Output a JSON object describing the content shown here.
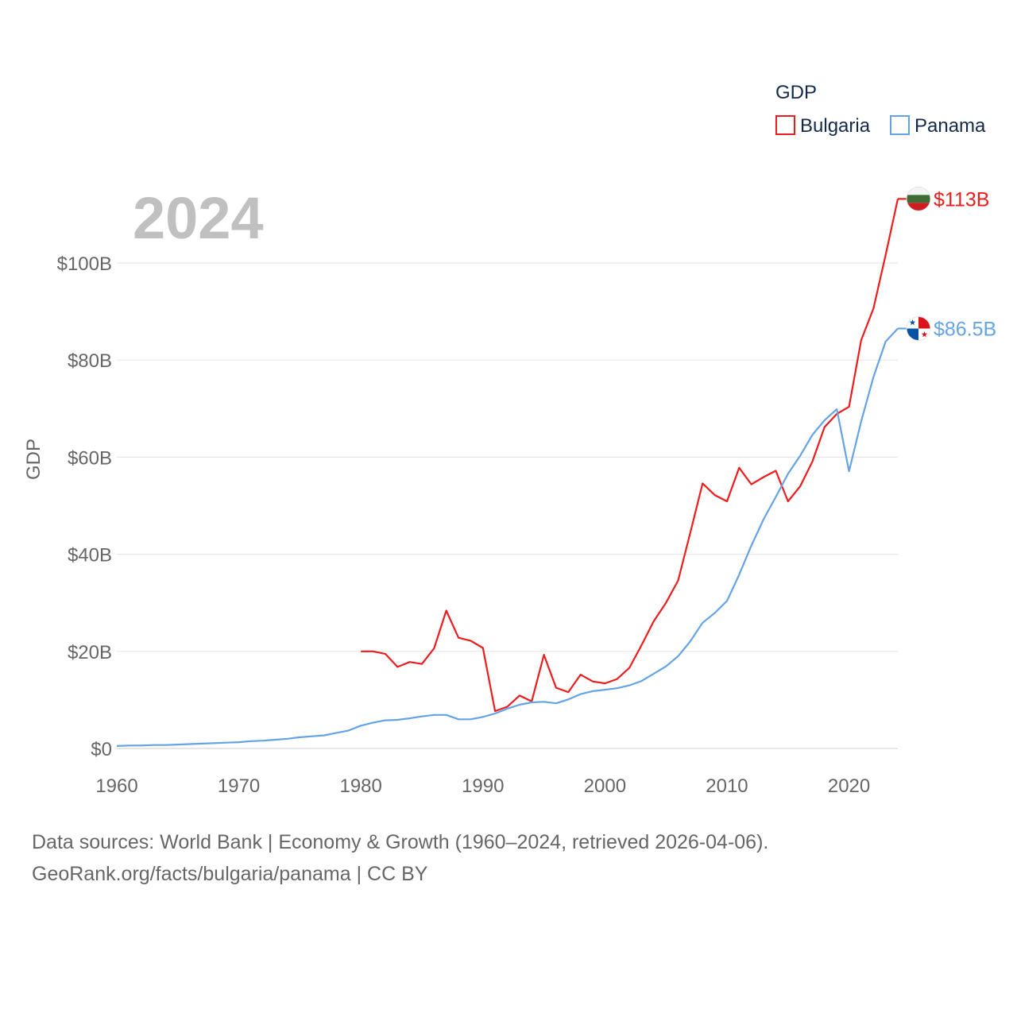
{
  "chart_data": {
    "type": "line",
    "year_label": "2024",
    "ylabel": "GDP",
    "xlabel": "",
    "legend": {
      "title": "GDP",
      "placement": "top-right"
    },
    "xlim": [
      1960,
      2024
    ],
    "ylim": [
      0,
      110
    ],
    "x_ticks": [
      1960,
      1970,
      1980,
      1990,
      2000,
      2010,
      2020
    ],
    "y_ticks": [
      {
        "value": 0,
        "label": "$0"
      },
      {
        "value": 20,
        "label": "$20B"
      },
      {
        "value": 40,
        "label": "$40B"
      },
      {
        "value": 60,
        "label": "$60B"
      },
      {
        "value": 80,
        "label": "$80B"
      },
      {
        "value": 100,
        "label": "$100B"
      }
    ],
    "series": [
      {
        "name": "Bulgaria",
        "color": "#ee1c1c",
        "end_label": "$113B",
        "flag": "bulgaria-flag",
        "points": [
          [
            1980,
            20.0
          ],
          [
            1981,
            20.0
          ],
          [
            1982,
            19.5
          ],
          [
            1983,
            16.8
          ],
          [
            1984,
            17.8
          ],
          [
            1985,
            17.4
          ],
          [
            1986,
            20.6
          ],
          [
            1987,
            28.4
          ],
          [
            1988,
            22.8
          ],
          [
            1989,
            22.2
          ],
          [
            1990,
            20.7
          ],
          [
            1991,
            7.7
          ],
          [
            1992,
            8.6
          ],
          [
            1993,
            10.9
          ],
          [
            1994,
            9.7
          ],
          [
            1995,
            19.3
          ],
          [
            1996,
            12.5
          ],
          [
            1997,
            11.6
          ],
          [
            1998,
            15.2
          ],
          [
            1999,
            13.8
          ],
          [
            2000,
            13.4
          ],
          [
            2001,
            14.3
          ],
          [
            2002,
            16.6
          ],
          [
            2003,
            21.3
          ],
          [
            2004,
            26.2
          ],
          [
            2005,
            30.0
          ],
          [
            2006,
            34.6
          ],
          [
            2007,
            44.5
          ],
          [
            2008,
            54.6
          ],
          [
            2009,
            52.2
          ],
          [
            2010,
            50.9
          ],
          [
            2011,
            57.8
          ],
          [
            2012,
            54.4
          ],
          [
            2013,
            55.9
          ],
          [
            2014,
            57.2
          ],
          [
            2015,
            50.9
          ],
          [
            2016,
            54.0
          ],
          [
            2017,
            59.1
          ],
          [
            2018,
            66.2
          ],
          [
            2019,
            68.9
          ],
          [
            2020,
            70.4
          ],
          [
            2021,
            84.1
          ],
          [
            2022,
            90.6
          ],
          [
            2023,
            101.6
          ],
          [
            2024,
            113.2
          ]
        ]
      },
      {
        "name": "Panama",
        "color": "#63a3e6",
        "end_label": "$86.5B",
        "flag": "panama-flag",
        "points": [
          [
            1960,
            0.5
          ],
          [
            1961,
            0.6
          ],
          [
            1962,
            0.6
          ],
          [
            1963,
            0.7
          ],
          [
            1964,
            0.7
          ],
          [
            1965,
            0.8
          ],
          [
            1966,
            0.9
          ],
          [
            1967,
            1.0
          ],
          [
            1968,
            1.1
          ],
          [
            1969,
            1.2
          ],
          [
            1970,
            1.3
          ],
          [
            1971,
            1.5
          ],
          [
            1972,
            1.6
          ],
          [
            1973,
            1.8
          ],
          [
            1974,
            2.0
          ],
          [
            1975,
            2.3
          ],
          [
            1976,
            2.5
          ],
          [
            1977,
            2.7
          ],
          [
            1978,
            3.2
          ],
          [
            1979,
            3.7
          ],
          [
            1980,
            4.7
          ],
          [
            1981,
            5.3
          ],
          [
            1982,
            5.8
          ],
          [
            1983,
            5.9
          ],
          [
            1984,
            6.2
          ],
          [
            1985,
            6.6
          ],
          [
            1986,
            6.9
          ],
          [
            1987,
            6.9
          ],
          [
            1988,
            6.0
          ],
          [
            1989,
            6.0
          ],
          [
            1990,
            6.5
          ],
          [
            1991,
            7.2
          ],
          [
            1992,
            8.2
          ],
          [
            1993,
            9.0
          ],
          [
            1994,
            9.5
          ],
          [
            1995,
            9.6
          ],
          [
            1996,
            9.3
          ],
          [
            1997,
            10.1
          ],
          [
            1998,
            11.2
          ],
          [
            1999,
            11.8
          ],
          [
            2000,
            12.1
          ],
          [
            2001,
            12.4
          ],
          [
            2002,
            13.0
          ],
          [
            2003,
            13.9
          ],
          [
            2004,
            15.4
          ],
          [
            2005,
            16.9
          ],
          [
            2006,
            19.0
          ],
          [
            2007,
            22.1
          ],
          [
            2008,
            25.9
          ],
          [
            2009,
            27.9
          ],
          [
            2010,
            30.4
          ],
          [
            2011,
            35.8
          ],
          [
            2012,
            41.8
          ],
          [
            2013,
            47.2
          ],
          [
            2014,
            51.8
          ],
          [
            2015,
            56.6
          ],
          [
            2016,
            60.3
          ],
          [
            2017,
            64.6
          ],
          [
            2018,
            67.6
          ],
          [
            2019,
            69.9
          ],
          [
            2020,
            57.1
          ],
          [
            2021,
            67.4
          ],
          [
            2022,
            76.5
          ],
          [
            2023,
            83.8
          ],
          [
            2024,
            86.5
          ]
        ]
      }
    ]
  },
  "footer": {
    "line1": "Data sources: World Bank | Economy & Growth (1960–2024, retrieved 2026-04-06).",
    "line2": "GeoRank.org/facts/bulgaria/panama | CC BY"
  }
}
